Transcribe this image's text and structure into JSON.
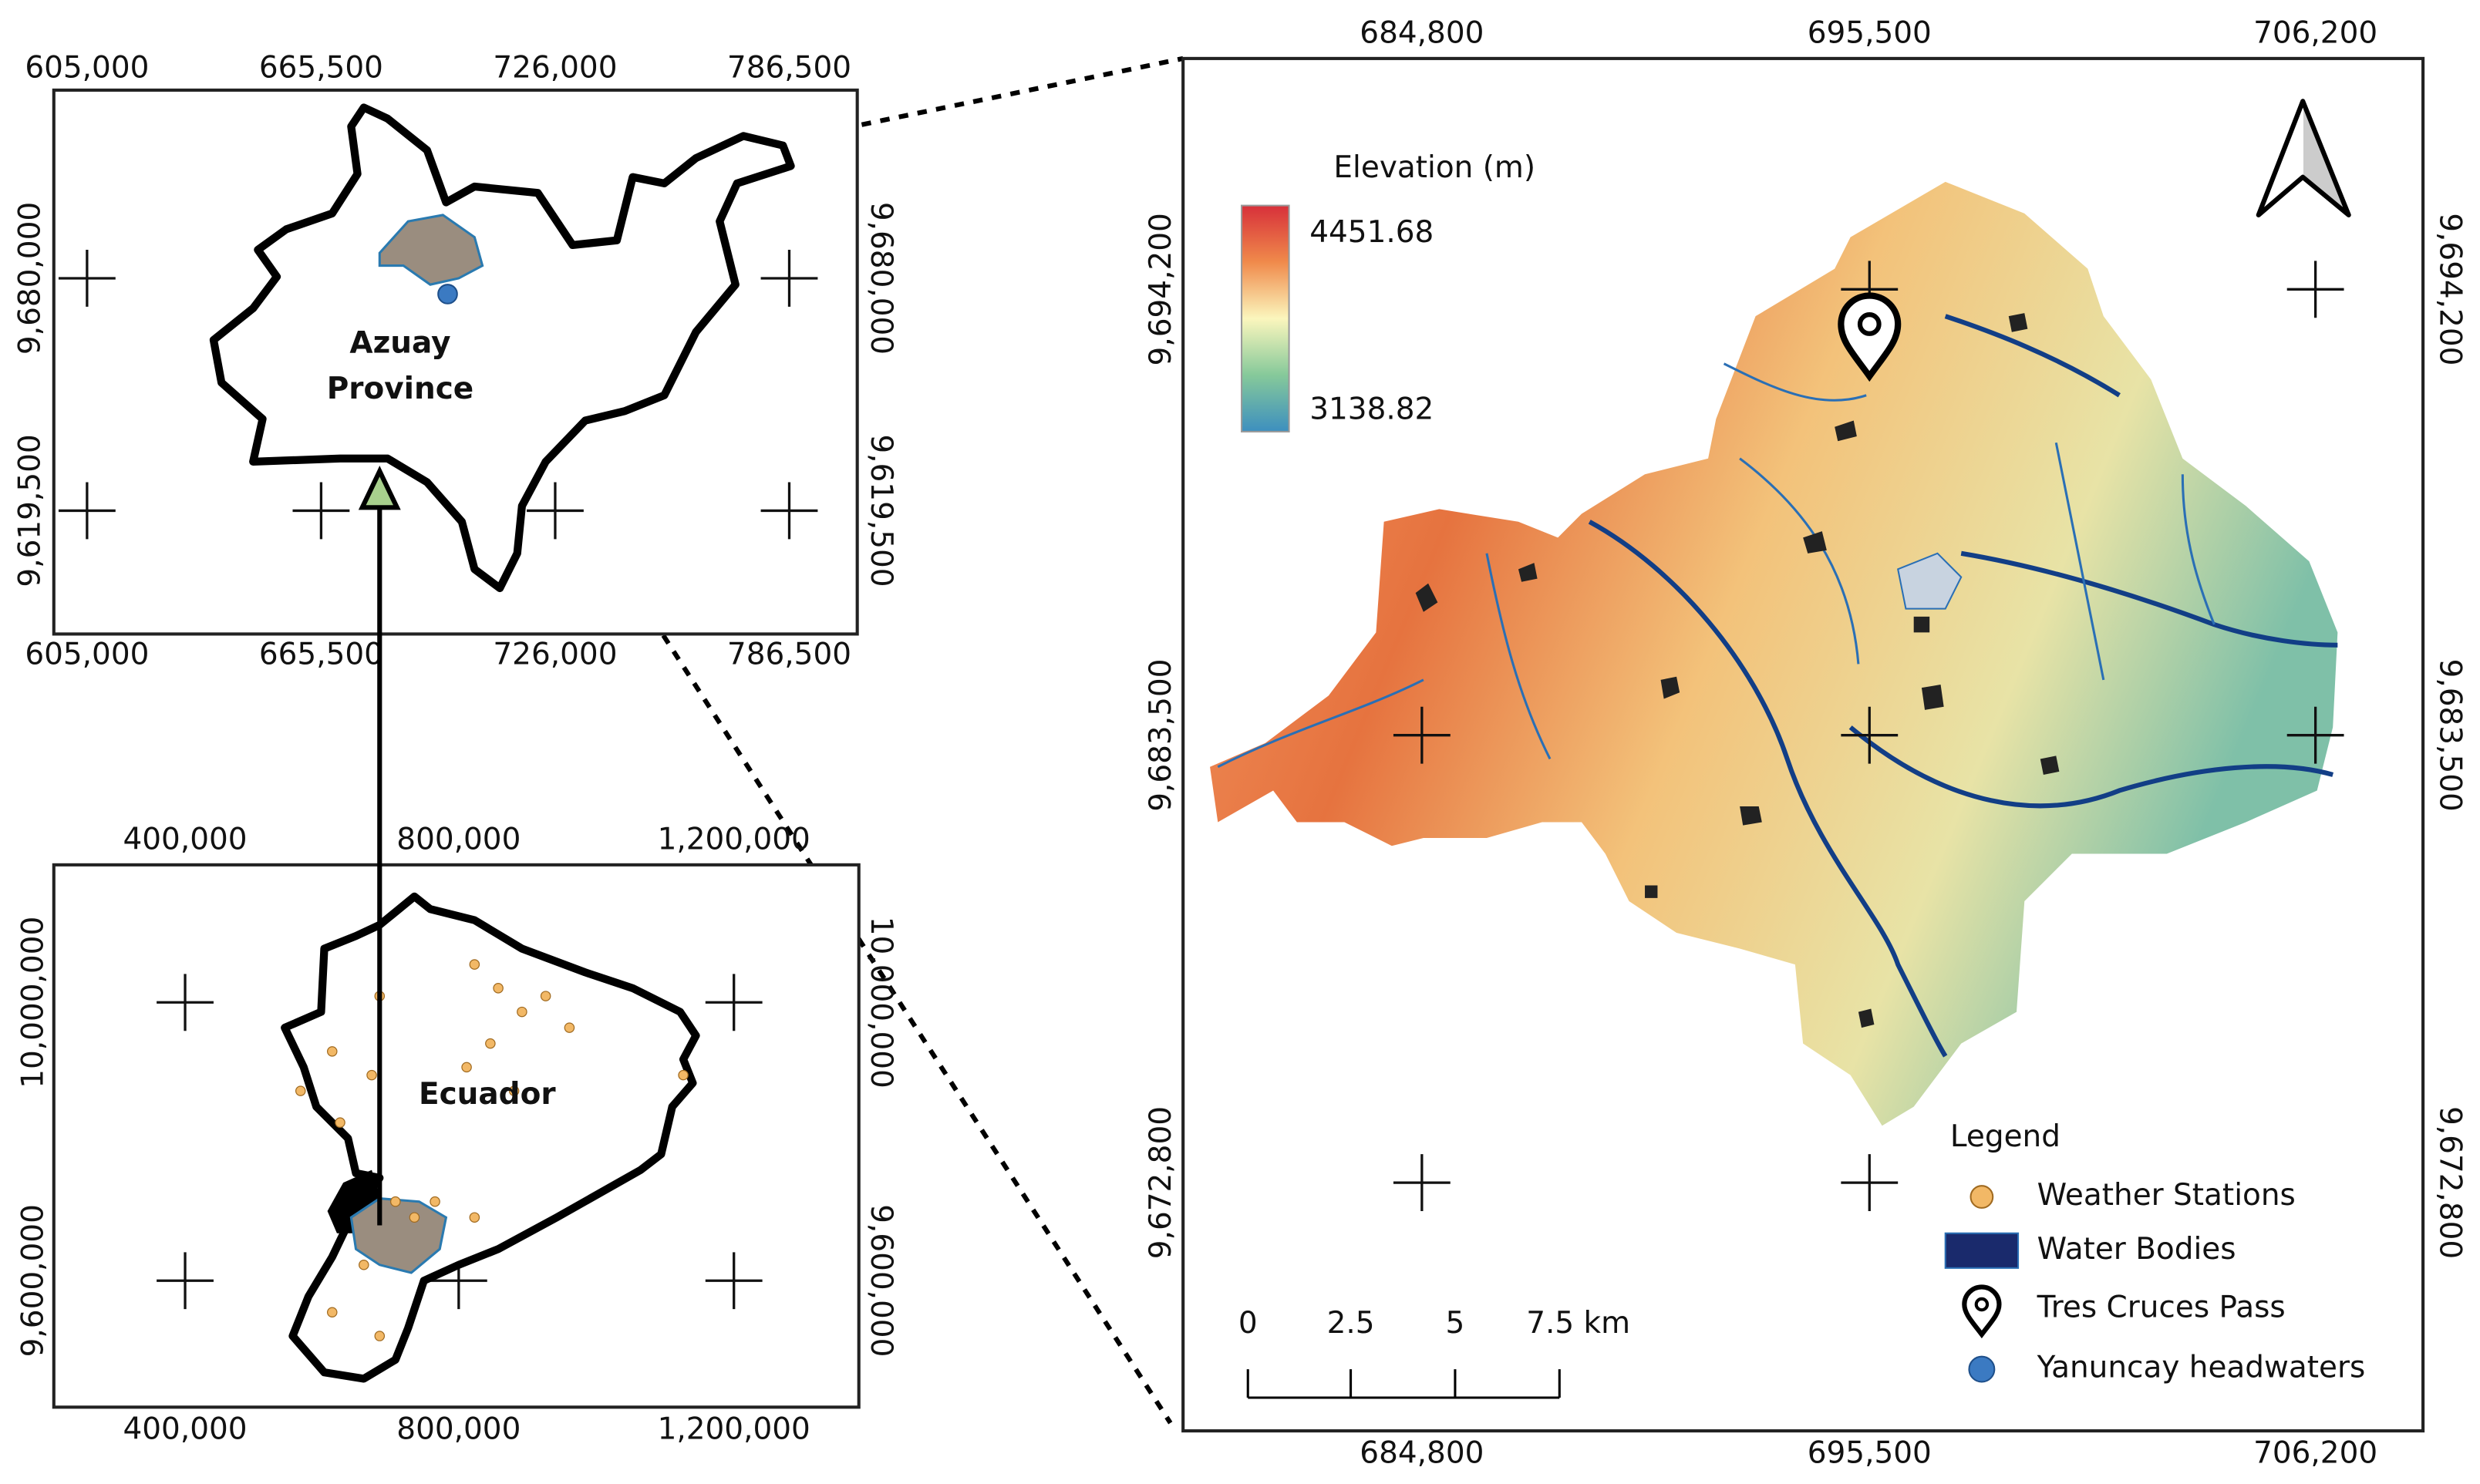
{
  "azuay_inset": {
    "x_ticks": [
      "605,000",
      "665,500",
      "726,000",
      "786,500"
    ],
    "y_ticks": [
      "9,680,000",
      "9,619,500"
    ],
    "label": [
      "Azuay",
      "Province"
    ]
  },
  "ecuador_inset": {
    "x_ticks": [
      "400,000",
      "800,000",
      "1,200,000"
    ],
    "y_ticks": [
      "10,000,000",
      "9,600,000"
    ],
    "label": "Ecuador"
  },
  "main_map": {
    "x_ticks": [
      "684,800",
      "695,500",
      "706,200"
    ],
    "y_ticks": [
      "9,694,200",
      "9,683,500",
      "9,672,800"
    ]
  },
  "elevation_legend": {
    "title": "Elevation (m)",
    "max": "4451.68",
    "min": "3138.82"
  },
  "legend": {
    "title": "Legend",
    "items": [
      "Weather Stations",
      "Water Bodies",
      "Tres Cruces Pass",
      "Yanuncay headwaters"
    ]
  },
  "scale_bar": {
    "labels": [
      "0",
      "2.5",
      "5",
      "7.5 km"
    ]
  }
}
